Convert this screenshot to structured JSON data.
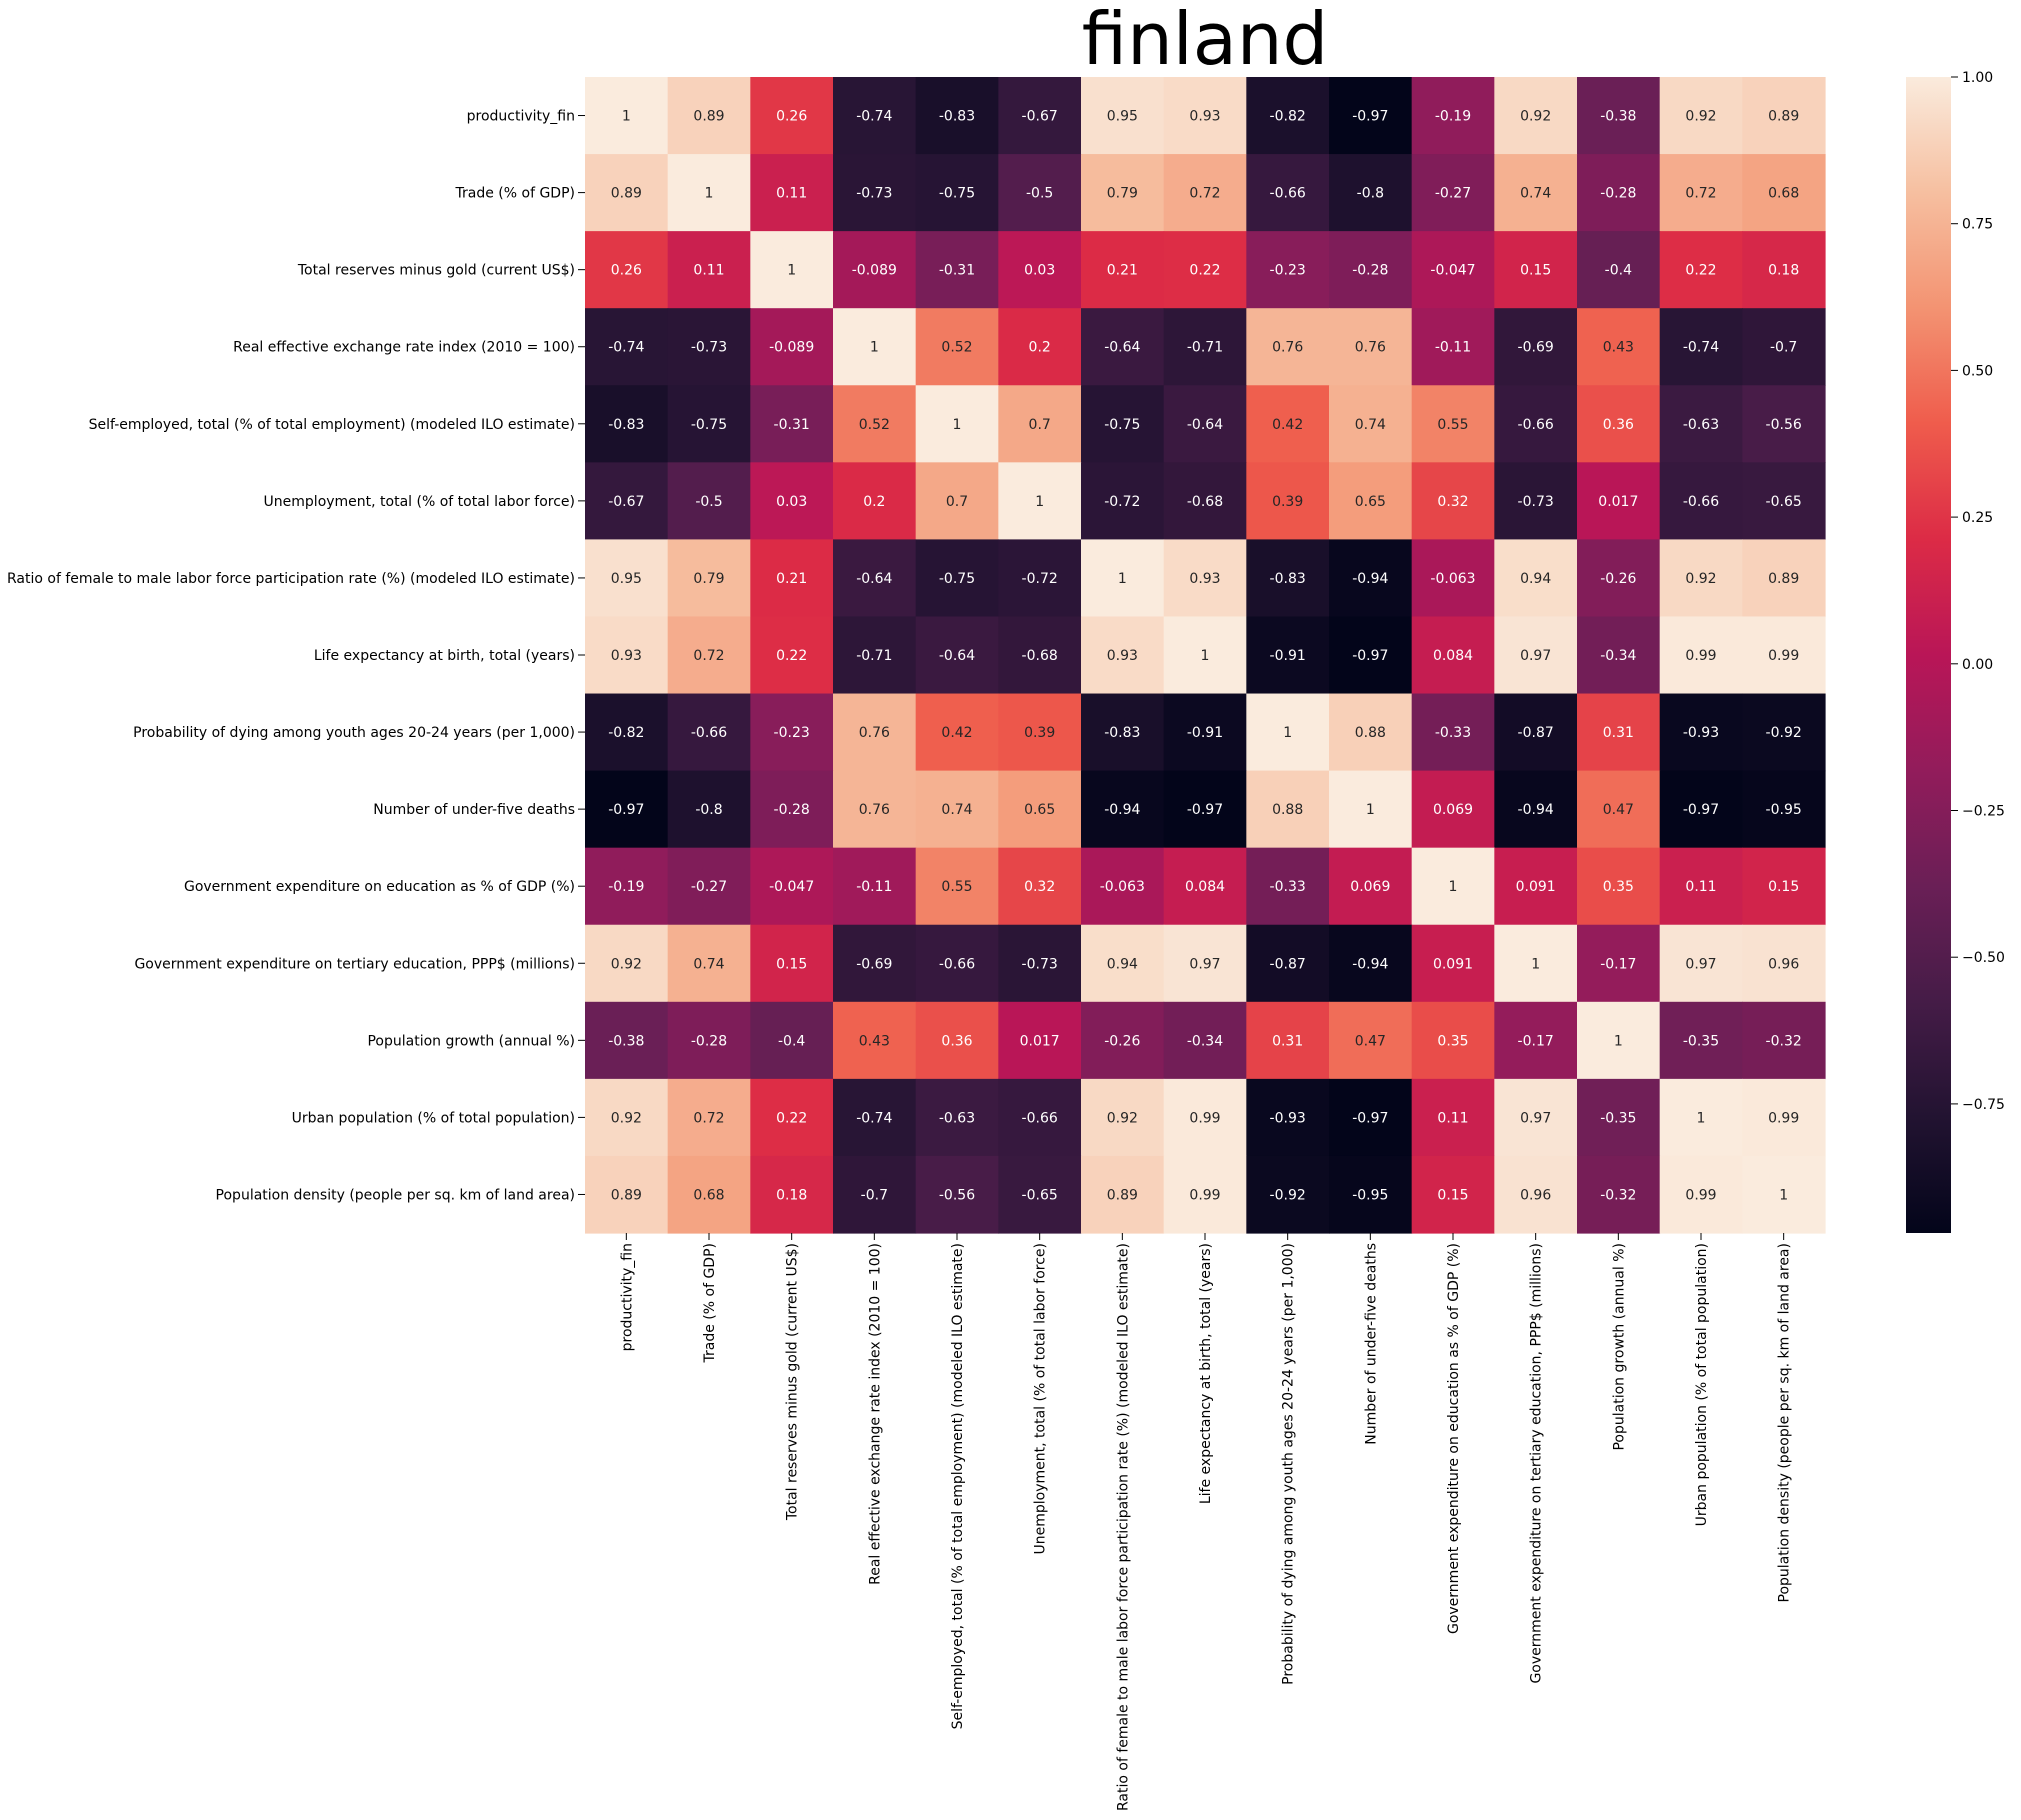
{
  "chart_data": {
    "type": "heatmap",
    "title": "finland",
    "labels": [
      "productivity_fin",
      "Trade (% of GDP)",
      "Total reserves minus gold (current US$)",
      "Real effective exchange rate index (2010 = 100)",
      "Self-employed, total (% of total employment) (modeled ILO estimate)",
      "Unemployment, total (% of total labor force)",
      "Ratio of female to male labor force participation rate (%) (modeled ILO estimate)",
      "Life expectancy at birth, total (years)",
      "Probability of dying among youth ages 20-24 years (per 1,000)",
      "Number of under-five deaths",
      "Government expenditure on education as % of GDP (%)",
      "Government expenditure on tertiary education, PPP$ (millions)",
      "Population growth (annual %)",
      "Urban population (% of total population)",
      "Population density (people per sq. km of land area)"
    ],
    "values": [
      [
        1,
        0.89,
        0.26,
        -0.74,
        -0.83,
        -0.67,
        0.95,
        0.93,
        -0.82,
        -0.97,
        -0.19,
        0.92,
        -0.38,
        0.92,
        0.89
      ],
      [
        0.89,
        1,
        0.11,
        -0.73,
        -0.75,
        -0.5,
        0.79,
        0.72,
        -0.66,
        -0.8,
        -0.27,
        0.74,
        -0.28,
        0.72,
        0.68
      ],
      [
        0.26,
        0.11,
        1,
        -0.089,
        -0.31,
        0.03,
        0.21,
        0.22,
        -0.23,
        -0.28,
        -0.047,
        0.15,
        -0.4,
        0.22,
        0.18
      ],
      [
        -0.74,
        -0.73,
        -0.089,
        1,
        0.52,
        0.2,
        -0.64,
        -0.71,
        0.76,
        0.76,
        -0.11,
        -0.69,
        0.43,
        -0.74,
        -0.7
      ],
      [
        -0.83,
        -0.75,
        -0.31,
        0.52,
        1,
        0.7,
        -0.75,
        -0.64,
        0.42,
        0.74,
        0.55,
        -0.66,
        0.36,
        -0.63,
        -0.56
      ],
      [
        -0.67,
        -0.5,
        0.03,
        0.2,
        0.7,
        1,
        -0.72,
        -0.68,
        0.39,
        0.65,
        0.32,
        -0.73,
        0.017,
        -0.66,
        -0.65
      ],
      [
        0.95,
        0.79,
        0.21,
        -0.64,
        -0.75,
        -0.72,
        1,
        0.93,
        -0.83,
        -0.94,
        -0.063,
        0.94,
        -0.26,
        0.92,
        0.89
      ],
      [
        0.93,
        0.72,
        0.22,
        -0.71,
        -0.64,
        -0.68,
        0.93,
        1,
        -0.91,
        -0.97,
        0.084,
        0.97,
        -0.34,
        0.99,
        0.99
      ],
      [
        -0.82,
        -0.66,
        -0.23,
        0.76,
        0.42,
        0.39,
        -0.83,
        -0.91,
        1,
        0.88,
        -0.33,
        -0.87,
        0.31,
        -0.93,
        -0.92
      ],
      [
        -0.97,
        -0.8,
        -0.28,
        0.76,
        0.74,
        0.65,
        -0.94,
        -0.97,
        0.88,
        1,
        0.069,
        -0.94,
        0.47,
        -0.97,
        -0.95
      ],
      [
        -0.19,
        -0.27,
        -0.047,
        -0.11,
        0.55,
        0.32,
        -0.063,
        0.084,
        -0.33,
        0.069,
        1,
        0.091,
        0.35,
        0.11,
        0.15
      ],
      [
        0.92,
        0.74,
        0.15,
        -0.69,
        -0.66,
        -0.73,
        0.94,
        0.97,
        -0.87,
        -0.94,
        0.091,
        1,
        -0.17,
        0.97,
        0.96
      ],
      [
        -0.38,
        -0.28,
        -0.4,
        0.43,
        0.36,
        0.017,
        -0.26,
        -0.34,
        0.31,
        0.47,
        0.35,
        -0.17,
        1,
        -0.35,
        -0.32
      ],
      [
        0.92,
        0.72,
        0.22,
        -0.74,
        -0.63,
        -0.66,
        0.92,
        0.99,
        -0.93,
        -0.97,
        0.11,
        0.97,
        -0.35,
        1,
        0.99
      ],
      [
        0.89,
        0.68,
        0.18,
        -0.7,
        -0.56,
        -0.65,
        0.89,
        0.99,
        -0.92,
        -0.95,
        0.15,
        0.96,
        -0.32,
        0.99,
        1
      ]
    ],
    "colorbar": {
      "min": -0.97,
      "max": 1.0,
      "ticks": [
        -0.75,
        -0.5,
        -0.25,
        0.0,
        0.25,
        0.5,
        0.75,
        1.0
      ],
      "tick_labels": [
        "−0.75",
        "−0.50",
        "−0.25",
        "0.00",
        "0.25",
        "0.50",
        "0.75",
        "1.00"
      ]
    },
    "colormap": "rocket",
    "colormap_stops": [
      "#03051a",
      "#221331",
      "#451c47",
      "#6a1f56",
      "#921c5b",
      "#b91657",
      "#dc2b46",
      "#ef5c4c",
      "#f39372",
      "#f6bfa0",
      "#faebdd"
    ]
  }
}
